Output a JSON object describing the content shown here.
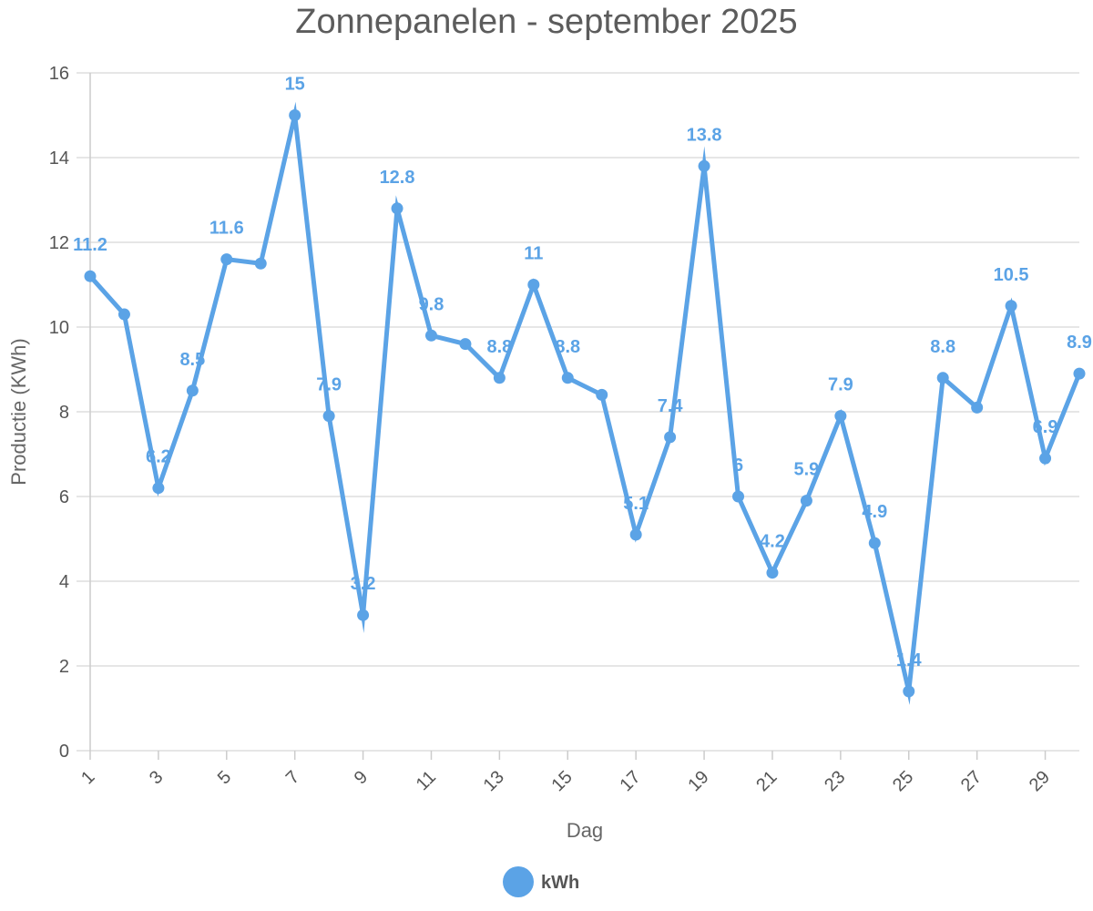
{
  "chart_data": {
    "type": "line",
    "title": "Zonnepanelen - september 2025",
    "xlabel": "Dag",
    "ylabel": "Productie (KWh)",
    "ylim": [
      0,
      16
    ],
    "yticks": [
      0,
      2,
      4,
      6,
      8,
      10,
      12,
      14,
      16
    ],
    "xlim": [
      1,
      30
    ],
    "xticks": [
      1,
      3,
      5,
      7,
      9,
      11,
      13,
      15,
      17,
      19,
      21,
      23,
      25,
      27,
      29
    ],
    "grid": "horizontal",
    "legend_position": "bottom",
    "color": "#5BA3E6",
    "x": [
      1,
      2,
      3,
      4,
      5,
      6,
      7,
      8,
      9,
      10,
      11,
      12,
      13,
      14,
      15,
      16,
      17,
      18,
      19,
      20,
      21,
      22,
      23,
      24,
      25,
      26,
      27,
      28,
      29,
      30
    ],
    "series": [
      {
        "name": "kWh",
        "values": [
          11.2,
          10.3,
          6.2,
          8.5,
          11.6,
          11.5,
          15,
          7.9,
          3.2,
          12.8,
          9.8,
          9.6,
          8.8,
          11,
          8.8,
          8.4,
          5.1,
          7.4,
          13.8,
          6,
          4.2,
          5.9,
          7.9,
          4.9,
          1.4,
          8.8,
          8.1,
          10.5,
          6.9,
          8.9
        ]
      }
    ],
    "data_labels": [
      {
        "day": 1,
        "text": "11.2"
      },
      {
        "day": 3,
        "text": "6.2"
      },
      {
        "day": 4,
        "text": "8.5"
      },
      {
        "day": 5,
        "text": "11.6"
      },
      {
        "day": 7,
        "text": "15"
      },
      {
        "day": 8,
        "text": "7.9"
      },
      {
        "day": 9,
        "text": "3.2"
      },
      {
        "day": 10,
        "text": "12.8"
      },
      {
        "day": 11,
        "text": "9.8"
      },
      {
        "day": 13,
        "text": "8.8"
      },
      {
        "day": 14,
        "text": "11"
      },
      {
        "day": 15,
        "text": "8.8"
      },
      {
        "day": 17,
        "text": "5.1"
      },
      {
        "day": 18,
        "text": "7.4"
      },
      {
        "day": 19,
        "text": "13.8"
      },
      {
        "day": 20,
        "text": "6"
      },
      {
        "day": 21,
        "text": "4.2"
      },
      {
        "day": 22,
        "text": "5.9"
      },
      {
        "day": 23,
        "text": "7.9"
      },
      {
        "day": 24,
        "text": "4.9"
      },
      {
        "day": 25,
        "text": "1.4"
      },
      {
        "day": 26,
        "text": "8.8"
      },
      {
        "day": 28,
        "text": "10.5"
      },
      {
        "day": 29,
        "text": "6.9"
      },
      {
        "day": 30,
        "text": "8.9"
      }
    ]
  }
}
